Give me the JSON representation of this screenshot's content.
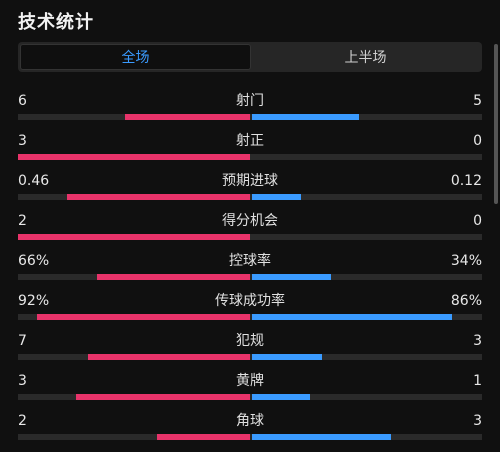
{
  "title": "技术统计",
  "tabs": [
    {
      "label": "全场",
      "active": true
    },
    {
      "label": "上半场",
      "active": false
    }
  ],
  "colors": {
    "home": "#e8336a",
    "away": "#3a9bff",
    "track": "#2a2a2a"
  },
  "stats": [
    {
      "label": "射门",
      "left": "6",
      "right": "5",
      "left_share": 0.54,
      "right_share": 0.46
    },
    {
      "label": "射正",
      "left": "3",
      "right": "0",
      "left_share": 1.0,
      "right_share": 0.0
    },
    {
      "label": "预期进球",
      "left": "0.46",
      "right": "0.12",
      "left_share": 0.79,
      "right_share": 0.21
    },
    {
      "label": "得分机会",
      "left": "2",
      "right": "0",
      "left_share": 1.0,
      "right_share": 0.0
    },
    {
      "label": "控球率",
      "left": "66%",
      "right": "34%",
      "left_share": 0.66,
      "right_share": 0.34
    },
    {
      "label": "传球成功率",
      "left": "92%",
      "right": "86%",
      "left_share": 0.92,
      "right_share": 0.86
    },
    {
      "label": "犯规",
      "left": "7",
      "right": "3",
      "left_share": 0.7,
      "right_share": 0.3
    },
    {
      "label": "黄牌",
      "left": "3",
      "right": "1",
      "left_share": 0.75,
      "right_share": 0.25
    },
    {
      "label": "角球",
      "left": "2",
      "right": "3",
      "left_share": 0.4,
      "right_share": 0.6
    }
  ]
}
